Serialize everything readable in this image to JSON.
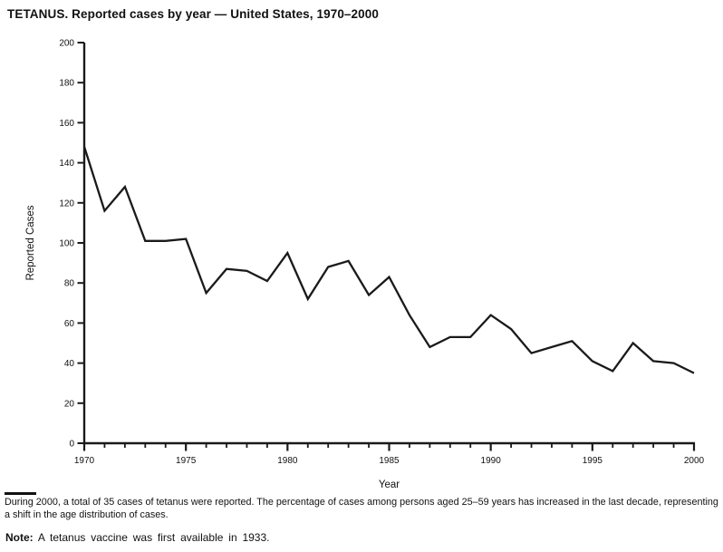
{
  "title": "TETANUS. Reported cases by year — United States, 1970–2000",
  "footnote": "During 2000, a total of 35 cases of tetanus were reported. The percentage of cases among persons aged 25–59 years has increased in the last decade, representing a shift in the age distribution of cases.",
  "note": {
    "label": "Note:",
    "text": "A tetanus vaccine was first available in 1933."
  },
  "chart_data": {
    "type": "line",
    "title": "TETANUS. Reported cases by year — United States, 1970–2000",
    "xlabel": "Year",
    "ylabel": "Reported Cases",
    "x": [
      1970,
      1971,
      1972,
      1973,
      1974,
      1975,
      1976,
      1977,
      1978,
      1979,
      1980,
      1981,
      1982,
      1983,
      1984,
      1985,
      1986,
      1987,
      1988,
      1989,
      1990,
      1991,
      1992,
      1993,
      1994,
      1995,
      1996,
      1997,
      1998,
      1999,
      2000
    ],
    "values": [
      148,
      116,
      128,
      101,
      101,
      102,
      75,
      87,
      86,
      81,
      95,
      72,
      88,
      91,
      74,
      83,
      64,
      48,
      53,
      53,
      64,
      57,
      45,
      48,
      51,
      41,
      36,
      50,
      41,
      40,
      35
    ],
    "ylim": [
      0,
      200
    ],
    "y_tick_step": 20,
    "x_major_ticks": [
      1970,
      1975,
      1980,
      1985,
      1990,
      1995,
      2000
    ],
    "x_minor_tick_step": 1,
    "grid": false,
    "legend": "none",
    "line_color": "#1a1a1a",
    "axis_color": "#1a1a1a"
  }
}
